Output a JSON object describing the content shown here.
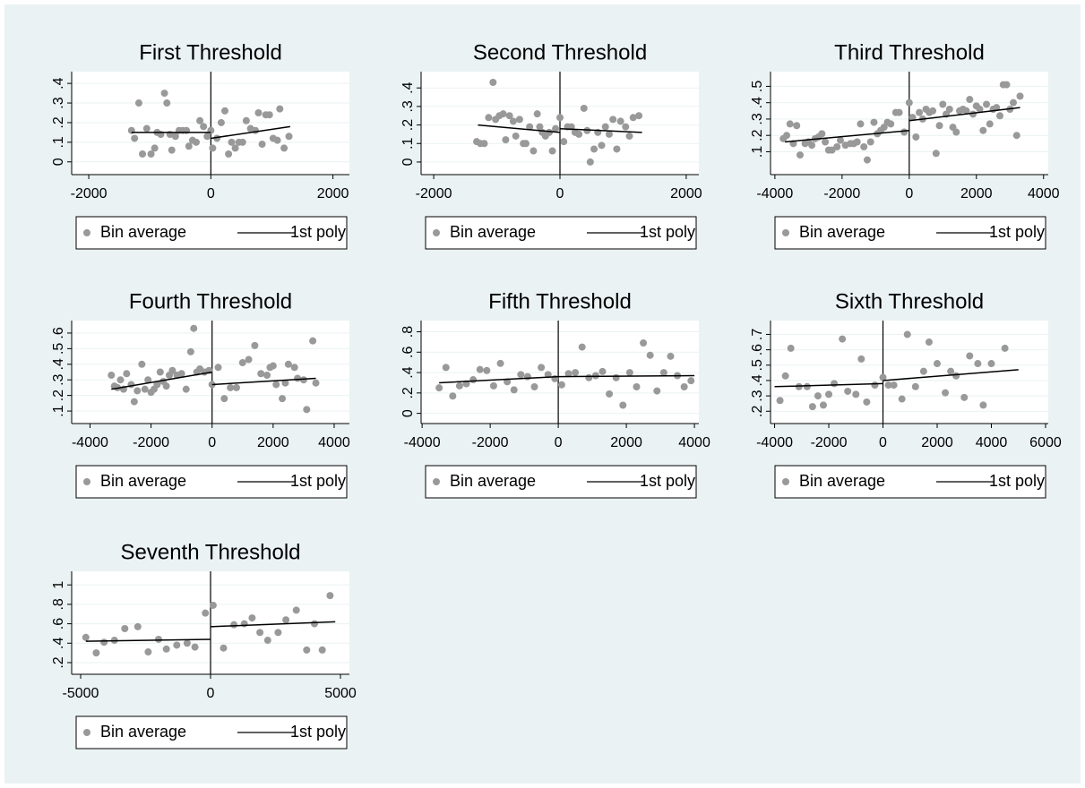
{
  "chart_data": [
    {
      "type": "scatter",
      "title": "First Threshold",
      "xlim": [
        -2280,
        2270
      ],
      "ylim": [
        -0.065,
        0.46
      ],
      "vline": 0,
      "xticks": [
        -2000,
        0,
        2000
      ],
      "yticks": [
        0,
        {
          "value": 0.1,
          "label": ".1"
        },
        {
          "value": 0.2,
          "label": ".2"
        },
        {
          "value": 0.3,
          "label": ".3"
        },
        {
          "value": 0.4,
          "label": ".4"
        }
      ],
      "series": [
        {
          "name": "Bin average",
          "color": "#999999",
          "x": [
            -1300,
            -1250,
            -1180,
            -1120,
            -1050,
            -980,
            -920,
            -880,
            -820,
            -760,
            -720,
            -670,
            -640,
            -580,
            -520,
            -460,
            -400,
            -360,
            -300,
            -240,
            -180,
            -120,
            -60,
            0,
            30,
            100,
            170,
            230,
            290,
            340,
            400,
            460,
            520,
            580,
            650,
            730,
            780,
            840,
            900,
            960,
            1020,
            1090,
            1130,
            1200,
            1280
          ],
          "values": [
            0.16,
            0.12,
            0.3,
            0.04,
            0.17,
            0.04,
            0.07,
            0.15,
            0.14,
            0.35,
            0.3,
            0.14,
            0.06,
            0.13,
            0.16,
            0.16,
            0.16,
            0.08,
            0.11,
            0.1,
            0.21,
            0.18,
            0.13,
            0.16,
            0.07,
            0.12,
            0.2,
            0.26,
            0.04,
            0.1,
            0.07,
            0.1,
            0.1,
            0.21,
            0.17,
            0.16,
            0.25,
            0.09,
            0.24,
            0.24,
            0.12,
            0.11,
            0.27,
            0.07,
            0.13
          ]
        },
        {
          "name": "1st poly",
          "color": "#000000",
          "x": [
            -1300,
            0,
            null,
            0,
            1300
          ],
          "values": [
            0.15,
            0.15,
            null,
            0.12,
            0.18
          ]
        }
      ]
    },
    {
      "type": "scatter",
      "title": "Second Threshold",
      "xlim": [
        -2200,
        2200
      ],
      "ylim": [
        -0.068,
        0.488
      ],
      "vline": 0,
      "xticks": [
        -2000,
        0,
        2000
      ],
      "yticks": [
        0,
        {
          "value": 0.1,
          "label": ".1"
        },
        {
          "value": 0.2,
          "label": ".2"
        },
        {
          "value": 0.3,
          "label": ".3"
        },
        {
          "value": 0.4,
          "label": ".4"
        }
      ],
      "series": [
        {
          "name": "Bin average",
          "color": "#999999",
          "x": [
            -1320,
            -1260,
            -1200,
            -1130,
            -1060,
            -1020,
            -960,
            -900,
            -860,
            -800,
            -740,
            -700,
            -640,
            -580,
            -540,
            -480,
            -420,
            -360,
            -320,
            -280,
            -230,
            -170,
            -120,
            -70,
            0,
            60,
            120,
            180,
            240,
            300,
            380,
            430,
            480,
            540,
            600,
            660,
            720,
            780,
            840,
            900,
            960,
            1040,
            1100,
            1160,
            1250
          ],
          "values": [
            0.11,
            0.1,
            0.1,
            0.24,
            0.43,
            0.23,
            0.25,
            0.26,
            0.12,
            0.25,
            0.22,
            0.14,
            0.23,
            0.1,
            0.1,
            0.19,
            0.06,
            0.26,
            0.19,
            0.16,
            0.14,
            0.16,
            0.06,
            0.18,
            0.24,
            0.11,
            0.19,
            0.19,
            0.16,
            0.15,
            0.29,
            0.17,
            0.0,
            0.07,
            0.16,
            0.09,
            0.19,
            0.15,
            0.23,
            0.07,
            0.22,
            0.19,
            0.14,
            0.24,
            0.25
          ]
        },
        {
          "name": "1st poly",
          "color": "#000000",
          "x": [
            -1300,
            0,
            null,
            0,
            1300
          ],
          "values": [
            0.2,
            0.16,
            null,
            0.18,
            0.16
          ]
        }
      ]
    },
    {
      "type": "scatter",
      "title": "Third Threshold",
      "xlim": [
        -4130,
        4140
      ],
      "ylim": [
        -0.04,
        0.59
      ],
      "vline": 0,
      "xticks": [
        -4000,
        -2000,
        0,
        2000,
        4000
      ],
      "yticks": [
        {
          "value": 0.1,
          "label": ".1"
        },
        {
          "value": 0.2,
          "label": ".2"
        },
        {
          "value": 0.3,
          "label": ".3"
        },
        {
          "value": 0.4,
          "label": ".4"
        },
        {
          "value": 0.5,
          "label": ".5"
        }
      ],
      "series": [
        {
          "name": "Bin average",
          "color": "#999999",
          "x": [
            -3750,
            -3650,
            -3550,
            -3450,
            -3350,
            -3250,
            -3100,
            -3000,
            -2900,
            -2800,
            -2700,
            -2600,
            -2500,
            -2400,
            -2300,
            -2150,
            -2050,
            -1900,
            -1750,
            -1650,
            -1550,
            -1450,
            -1350,
            -1250,
            -1150,
            -1050,
            -950,
            -850,
            -750,
            -650,
            -550,
            -400,
            -300,
            -150,
            0,
            100,
            200,
            300,
            400,
            500,
            600,
            700,
            800,
            900,
            1000,
            1100,
            1200,
            1300,
            1400,
            1500,
            1600,
            1700,
            1800,
            1900,
            2000,
            2100,
            2200,
            2300,
            2400,
            2500,
            2600,
            2700,
            2800,
            2900,
            3000,
            3100,
            3200,
            3300
          ],
          "values": [
            0.18,
            0.2,
            0.27,
            0.15,
            0.26,
            0.08,
            0.15,
            0.16,
            0.14,
            0.18,
            0.19,
            0.21,
            0.16,
            0.11,
            0.11,
            0.13,
            0.17,
            0.14,
            0.15,
            0.15,
            0.16,
            0.27,
            0.13,
            0.05,
            0.16,
            0.28,
            0.21,
            0.23,
            0.25,
            0.28,
            0.27,
            0.34,
            0.34,
            0.22,
            0.4,
            0.31,
            0.19,
            0.34,
            0.3,
            0.36,
            0.34,
            0.35,
            0.09,
            0.26,
            0.39,
            0.33,
            0.36,
            0.25,
            0.22,
            0.35,
            0.36,
            0.35,
            0.42,
            0.33,
            0.38,
            0.36,
            0.23,
            0.39,
            0.27,
            0.36,
            0.37,
            0.32,
            0.51,
            0.51,
            0.36,
            0.4,
            0.2,
            0.44
          ]
        },
        {
          "name": "1st poly",
          "color": "#000000",
          "x": [
            -3700,
            0,
            null,
            0,
            3300
          ],
          "values": [
            0.16,
            0.23,
            null,
            0.29,
            0.37
          ]
        }
      ]
    },
    {
      "type": "scatter",
      "title": "Fourth Threshold",
      "xlim": [
        -4600,
        4500
      ],
      "ylim": [
        0.02,
        0.68
      ],
      "vline": 0,
      "xticks": [
        -4000,
        -2000,
        0,
        2000,
        4000
      ],
      "yticks": [
        {
          "value": 0.1,
          "label": ".1"
        },
        {
          "value": 0.2,
          "label": ".2"
        },
        {
          "value": 0.3,
          "label": ".3"
        },
        {
          "value": 0.4,
          "label": ".4"
        },
        {
          "value": 0.5,
          "label": ".5"
        },
        {
          "value": 0.6,
          "label": ".6"
        }
      ],
      "series": [
        {
          "name": "Bin average",
          "color": "#999999",
          "x": [
            -3300,
            -3200,
            -3100,
            -3000,
            -2900,
            -2800,
            -2650,
            -2550,
            -2450,
            -2300,
            -2200,
            -2100,
            -2000,
            -1900,
            -1800,
            -1700,
            -1600,
            -1500,
            -1400,
            -1300,
            -1150,
            -1000,
            -850,
            -700,
            -600,
            -500,
            -400,
            -250,
            -100,
            0,
            200,
            400,
            600,
            800,
            1000,
            1200,
            1400,
            1600,
            1800,
            1900,
            2000,
            2100,
            2300,
            2400,
            2500,
            2700,
            2800,
            3000,
            3100,
            3300,
            3400
          ],
          "values": [
            0.33,
            0.26,
            0.25,
            0.3,
            0.24,
            0.34,
            0.27,
            0.16,
            0.23,
            0.4,
            0.24,
            0.3,
            0.22,
            0.24,
            0.27,
            0.35,
            0.29,
            0.26,
            0.33,
            0.36,
            0.33,
            0.34,
            0.24,
            0.48,
            0.63,
            0.35,
            0.37,
            0.35,
            0.36,
            0.27,
            0.38,
            0.18,
            0.25,
            0.25,
            0.41,
            0.43,
            0.52,
            0.34,
            0.33,
            0.38,
            0.39,
            0.27,
            0.18,
            0.28,
            0.4,
            0.38,
            0.31,
            0.3,
            0.11,
            0.55,
            0.28
          ]
        },
        {
          "name": "1st poly",
          "color": "#000000",
          "x": [
            -3300,
            0,
            null,
            0,
            3400
          ],
          "values": [
            0.24,
            0.35,
            null,
            0.27,
            0.31
          ]
        }
      ]
    },
    {
      "type": "scatter",
      "title": "Fifth Threshold",
      "xlim": [
        -4030,
        4130
      ],
      "ylim": [
        -0.1,
        0.91
      ],
      "vline": 0,
      "xticks": [
        -4000,
        -2000,
        0,
        2000,
        4000
      ],
      "yticks": [
        0,
        {
          "value": 0.2,
          "label": ".2"
        },
        {
          "value": 0.4,
          "label": ".4"
        },
        {
          "value": 0.6,
          "label": ".6"
        },
        {
          "value": 0.8,
          "label": ".8"
        }
      ],
      "series": [
        {
          "name": "Bin average",
          "color": "#999999",
          "x": [
            -3500,
            -3300,
            -3100,
            -2900,
            -2700,
            -2500,
            -2300,
            -2100,
            -1900,
            -1700,
            -1500,
            -1300,
            -1100,
            -900,
            -700,
            -500,
            -300,
            -100,
            100,
            300,
            500,
            700,
            900,
            1100,
            1300,
            1500,
            1700,
            1900,
            2100,
            2300,
            2500,
            2700,
            2900,
            3100,
            3300,
            3500,
            3700,
            3900
          ],
          "values": [
            0.25,
            0.45,
            0.17,
            0.27,
            0.29,
            0.33,
            0.43,
            0.42,
            0.27,
            0.49,
            0.31,
            0.23,
            0.38,
            0.36,
            0.26,
            0.45,
            0.38,
            0.34,
            0.28,
            0.39,
            0.4,
            0.65,
            0.35,
            0.37,
            0.41,
            0.19,
            0.35,
            0.08,
            0.4,
            0.26,
            0.69,
            0.57,
            0.22,
            0.4,
            0.56,
            0.37,
            0.26,
            0.32
          ]
        },
        {
          "name": "1st poly",
          "color": "#000000",
          "x": [
            -3500,
            0,
            null,
            0,
            4000
          ],
          "values": [
            0.3,
            0.36,
            null,
            0.36,
            0.37
          ]
        }
      ]
    },
    {
      "type": "scatter",
      "title": "Sixth Threshold",
      "xlim": [
        -4150,
        6100
      ],
      "ylim": [
        0.12,
        0.79
      ],
      "vline": 0,
      "xticks": [
        -4000,
        -2000,
        0,
        2000,
        4000,
        6000
      ],
      "yticks": [
        {
          "value": 0.2,
          "label": ".2"
        },
        {
          "value": 0.3,
          "label": ".3"
        },
        {
          "value": 0.4,
          "label": ".4"
        },
        {
          "value": 0.5,
          "label": ".5"
        },
        {
          "value": 0.6,
          "label": ".6"
        },
        {
          "value": 0.7,
          "label": ".7"
        }
      ],
      "series": [
        {
          "name": "Bin average",
          "color": "#999999",
          "x": [
            -3800,
            -3600,
            -3400,
            -3100,
            -2800,
            -2600,
            -2400,
            -2200,
            -2000,
            -1800,
            -1500,
            -1300,
            -1000,
            -800,
            -600,
            -300,
            0,
            200,
            400,
            700,
            900,
            1200,
            1500,
            1700,
            2000,
            2300,
            2500,
            2700,
            3000,
            3200,
            3500,
            3700,
            4000,
            4500
          ],
          "values": [
            0.27,
            0.43,
            0.61,
            0.36,
            0.36,
            0.23,
            0.3,
            0.24,
            0.31,
            0.38,
            0.67,
            0.33,
            0.31,
            0.54,
            0.26,
            0.37,
            0.42,
            0.37,
            0.37,
            0.28,
            0.7,
            0.36,
            0.46,
            0.65,
            0.51,
            0.32,
            0.46,
            0.43,
            0.29,
            0.56,
            0.51,
            0.24,
            0.51,
            0.61
          ]
        },
        {
          "name": "1st poly",
          "color": "#000000",
          "x": [
            -4000,
            0,
            null,
            0,
            5000
          ],
          "values": [
            0.36,
            0.38,
            null,
            0.4,
            0.47
          ]
        }
      ]
    },
    {
      "type": "scatter",
      "title": "Seventh Threshold",
      "xlim": [
        -5345,
        5345
      ],
      "ylim": [
        0.08,
        1.14
      ],
      "vline": 0,
      "xticks": [
        -5000,
        0,
        5000
      ],
      "yticks": [
        {
          "value": 0.2,
          "label": ".2"
        },
        {
          "value": 0.4,
          "label": ".4"
        },
        {
          "value": 0.6,
          "label": ".6"
        },
        {
          "value": 0.8,
          "label": ".8"
        },
        1
      ],
      "series": [
        {
          "name": "Bin average",
          "color": "#999999",
          "x": [
            -4800,
            -4400,
            -4100,
            -3700,
            -3300,
            -2800,
            -2400,
            -2000,
            -1700,
            -1300,
            -900,
            -600,
            -200,
            100,
            500,
            900,
            1300,
            1600,
            1900,
            2200,
            2600,
            2900,
            3300,
            3700,
            4000,
            4300,
            4600
          ],
          "values": [
            0.46,
            0.3,
            0.41,
            0.43,
            0.55,
            0.57,
            0.31,
            0.44,
            0.34,
            0.38,
            0.4,
            0.36,
            0.71,
            0.79,
            0.35,
            0.59,
            0.6,
            0.66,
            0.51,
            0.43,
            0.51,
            0.64,
            0.74,
            0.33,
            0.6,
            0.33,
            0.89
          ]
        },
        {
          "name": "1st poly",
          "color": "#000000",
          "x": [
            -4800,
            0,
            null,
            0,
            4800
          ],
          "values": [
            0.42,
            0.44,
            null,
            0.57,
            0.62
          ]
        }
      ]
    }
  ]
}
